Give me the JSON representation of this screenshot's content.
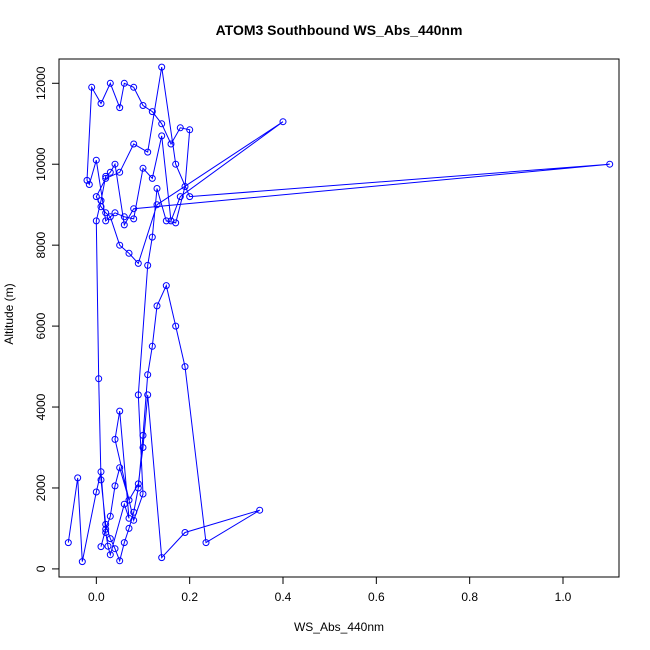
{
  "chart_data": {
    "type": "line",
    "title": "ATOM3 Southbound WS_Abs_440nm",
    "xlabel": "WS_Abs_440nm",
    "ylabel": "Altitude (m)",
    "xlim": [
      -0.08,
      1.12
    ],
    "ylim": [
      -200,
      12600
    ],
    "xticks": [
      0.0,
      0.2,
      0.4,
      0.6,
      0.8,
      1.0
    ],
    "xtick_labels": [
      "0.0",
      "0.2",
      "0.4",
      "0.6",
      "0.8",
      "1.0"
    ],
    "yticks": [
      0,
      2000,
      4000,
      6000,
      8000,
      10000,
      12000
    ],
    "ytick_labels": [
      "0",
      "2000",
      "4000",
      "6000",
      "8000",
      "10000",
      "12000"
    ],
    "grid": false,
    "legend": "none",
    "color": "#0000ff",
    "series": [
      {
        "x": [
          -0.06,
          -0.04,
          -0.03,
          0.0,
          0.01,
          0.02,
          0.025,
          0.03,
          0.06,
          0.07,
          0.05,
          0.04,
          0.08,
          0.1,
          0.09,
          0.11,
          0.12,
          0.13,
          0.15,
          0.17,
          0.19,
          0.2,
          0.18,
          0.16,
          0.14,
          0.12,
          0.1,
          0.08,
          0.06,
          0.05,
          0.03,
          0.01,
          -0.01,
          -0.02,
          -0.015,
          0.0,
          0.02,
          0.04,
          0.06,
          0.08,
          0.1,
          0.12,
          0.14,
          0.16,
          0.18,
          0.4,
          0.13,
          0.09,
          0.07,
          0.05,
          0.03,
          0.02,
          0.01,
          0.0,
          0.02,
          0.05,
          0.08,
          0.11,
          0.14,
          0.17,
          0.2,
          1.1,
          0.08,
          0.06,
          0.04,
          0.03,
          0.02,
          0.01,
          0.0,
          0.005,
          0.01,
          0.02,
          0.03,
          0.04,
          0.05,
          0.06,
          0.07,
          0.08,
          0.09,
          0.1,
          0.11,
          0.12,
          0.13,
          0.15,
          0.17,
          0.19,
          0.235,
          0.35,
          0.19,
          0.14,
          0.11,
          0.1,
          0.09,
          0.07,
          0.05,
          0.04,
          0.03,
          0.02,
          0.01
        ],
        "y": [
          650,
          2250,
          180,
          1900,
          2400,
          900,
          560,
          350,
          1600,
          1250,
          3900,
          3200,
          1200,
          1850,
          4300,
          7500,
          8200,
          9400,
          8600,
          8550,
          9450,
          10850,
          10900,
          10500,
          11000,
          11300,
          11450,
          11900,
          12000,
          11400,
          12000,
          11500,
          11900,
          9600,
          9500,
          10100,
          8600,
          8800,
          8700,
          8650,
          9900,
          9650,
          10700,
          8600,
          9200,
          11050,
          9000,
          7550,
          7800,
          8000,
          8700,
          8800,
          8950,
          9200,
          9650,
          9800,
          10500,
          10300,
          12400,
          10000,
          9200,
          10000,
          8900,
          8500,
          10000,
          9800,
          9700,
          9100,
          8600,
          4700,
          2200,
          1100,
          750,
          500,
          200,
          650,
          1000,
          1400,
          2000,
          3300,
          4800,
          5500,
          6500,
          7000,
          6000,
          5000,
          650,
          1450,
          900,
          280,
          4300,
          3000,
          2100,
          1700,
          2500,
          2050,
          1300,
          980,
          550
        ]
      }
    ]
  }
}
